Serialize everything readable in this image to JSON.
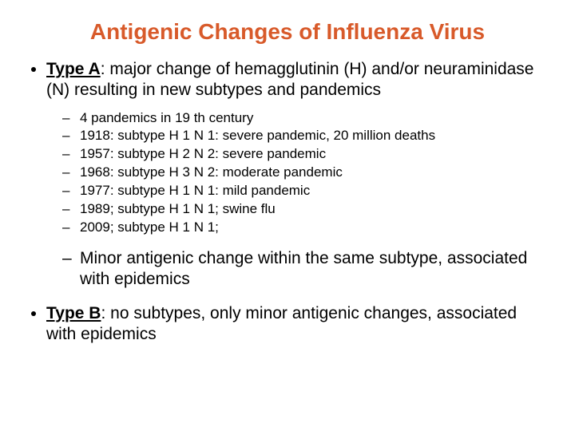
{
  "colors": {
    "title": "#d85a2a",
    "text": "#000000",
    "background": "#ffffff"
  },
  "typography": {
    "family": "Arial",
    "title_size_pt": 28,
    "body_size_pt": 21,
    "sub_size_pt": 17,
    "title_weight": "bold"
  },
  "title": "Antigenic Changes of  Influenza Virus",
  "typeA": {
    "lead": "Type A",
    "text": ": major change of hemagglutinin (H) and/or neuraminidase (N) resulting in new subtypes and pandemics",
    "history": [
      "4 pandemics in 19 th century",
      "1918: subtype H 1 N 1: severe pandemic, 20 million deaths",
      "1957: subtype H 2 N 2: severe pandemic",
      "1968: subtype H 3 N 2: moderate pandemic",
      "1977: subtype H 1 N 1: mild pandemic",
      "1989; subtype H 1 N 1; swine flu",
      "2009; subtype H 1 N 1;"
    ],
    "minor": "Minor antigenic change within the same subtype, associated with epidemics"
  },
  "typeB": {
    "lead": "Type B",
    "text": ": no subtypes, only minor antigenic changes, associated with epidemics"
  }
}
